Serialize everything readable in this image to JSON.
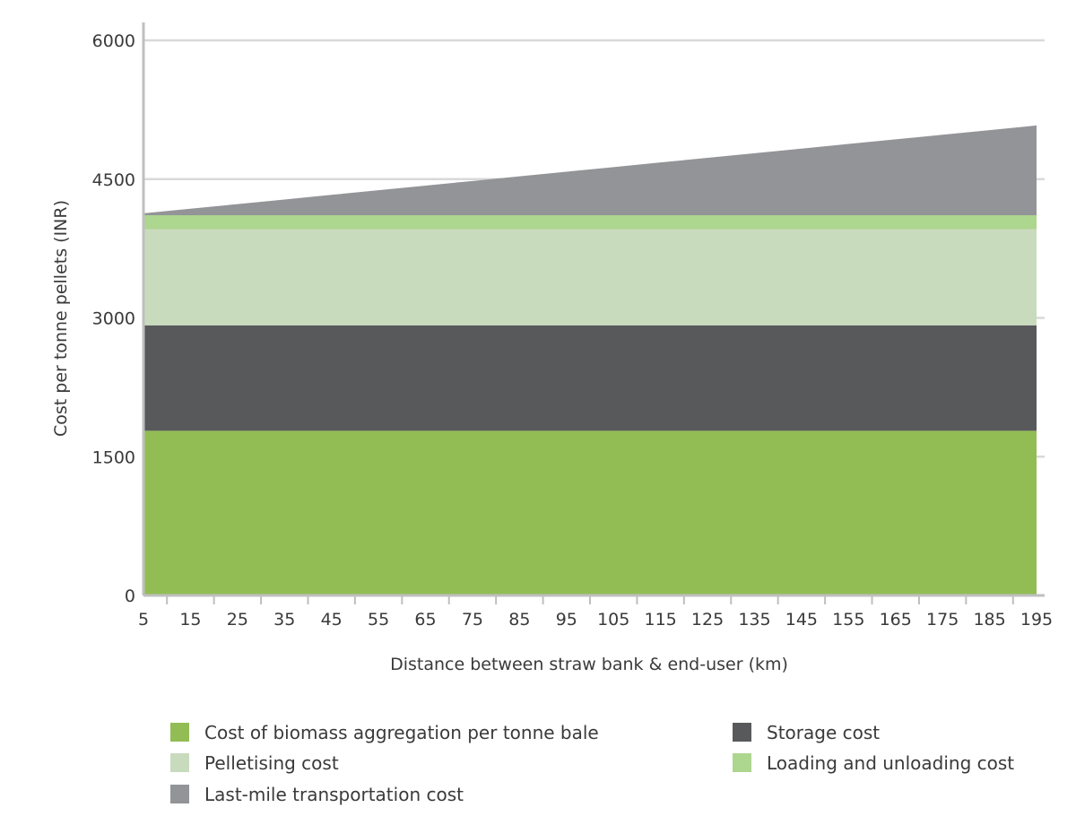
{
  "chart_data": {
    "type": "area",
    "stacked": true,
    "title": "",
    "xlabel": "Distance between straw bank & end-user (km)",
    "ylabel": "Cost per tonne pellets (INR)",
    "x": [
      5,
      15,
      25,
      35,
      45,
      55,
      65,
      75,
      85,
      95,
      105,
      115,
      125,
      135,
      145,
      155,
      165,
      175,
      185,
      195
    ],
    "x_tick_labels": [
      "5",
      "15",
      "25",
      "35",
      "45",
      "55",
      "65",
      "75",
      "85",
      "95",
      "105",
      "115",
      "125",
      "135",
      "145",
      "155",
      "165",
      "175",
      "185",
      "195"
    ],
    "xlim": [
      5,
      195
    ],
    "ylim": [
      0,
      6000
    ],
    "y_ticks": [
      0,
      1500,
      3000,
      4500,
      6000
    ],
    "y_tick_labels": [
      "0",
      "1500",
      "3000",
      "4500",
      "6000"
    ],
    "grid": "horizontal",
    "legend_position": "bottom",
    "series": [
      {
        "name": "Cost of biomass aggregation per tonne bale",
        "color": "#92bd55",
        "values": [
          1780,
          1780,
          1780,
          1780,
          1780,
          1780,
          1780,
          1780,
          1780,
          1780,
          1780,
          1780,
          1780,
          1780,
          1780,
          1780,
          1780,
          1780,
          1780,
          1780
        ]
      },
      {
        "name": "Storage cost",
        "color": "#58595b",
        "values": [
          1140,
          1140,
          1140,
          1140,
          1140,
          1140,
          1140,
          1140,
          1140,
          1140,
          1140,
          1140,
          1140,
          1140,
          1140,
          1140,
          1140,
          1140,
          1140,
          1140
        ]
      },
      {
        "name": "Pelletising cost",
        "color": "#c9dbbd",
        "values": [
          1040,
          1040,
          1040,
          1040,
          1040,
          1040,
          1040,
          1040,
          1040,
          1040,
          1040,
          1040,
          1040,
          1040,
          1040,
          1040,
          1040,
          1040,
          1040,
          1040
        ]
      },
      {
        "name": "Loading and unloading cost",
        "color": "#add68f",
        "values": [
          150,
          150,
          150,
          150,
          150,
          150,
          150,
          150,
          150,
          150,
          150,
          150,
          150,
          150,
          150,
          150,
          150,
          150,
          150,
          150
        ]
      },
      {
        "name": "Last-mile transportation cost",
        "color": "#939497",
        "values": [
          20,
          70,
          120,
          170,
          220,
          270,
          320,
          370,
          420,
          470,
          520,
          570,
          620,
          670,
          720,
          770,
          820,
          870,
          920,
          970
        ]
      }
    ],
    "legend": [
      {
        "label": "Cost of biomass aggregation per tonne bale",
        "color": "#92bd55"
      },
      {
        "label": "Storage cost",
        "color": "#58595b"
      },
      {
        "label": "Pelletising cost",
        "color": "#c9dbbd"
      },
      {
        "label": "Loading and unloading cost",
        "color": "#add68f"
      },
      {
        "label": "Last-mile transportation cost",
        "color": "#939497"
      }
    ],
    "colors": {
      "gridline": "#d9d9d9",
      "axis": "#bfbfbf",
      "text": "#3a3a3a"
    }
  }
}
